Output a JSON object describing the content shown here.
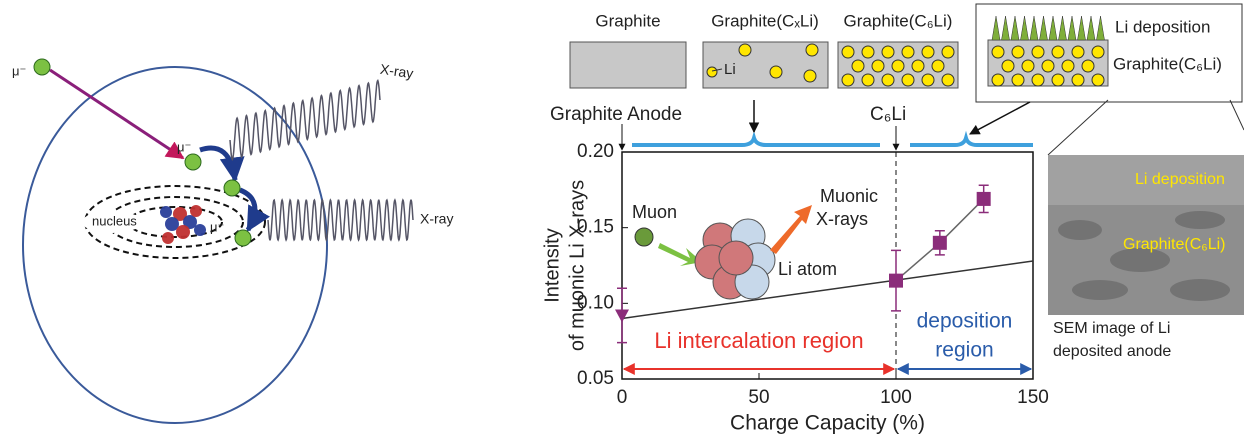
{
  "diagram": {
    "muon_labels": [
      "μ⁻",
      "μ⁻",
      "μ⁻"
    ],
    "xray_labels": [
      "X-ray",
      "X-ray"
    ],
    "nucleus": "nucleus"
  },
  "schematic": {
    "panels": [
      "Graphite",
      "Graphite(CₓLi)",
      "Graphite(C₆Li)"
    ],
    "li_label": "Li",
    "deposit_panel": [
      "Li deposition",
      "Graphite(C₆Li)"
    ]
  },
  "sem": {
    "overlay": [
      "Li deposition",
      "Graphite(C₆Li)"
    ],
    "caption": [
      "SEM image of Li",
      "deposited anode"
    ]
  },
  "chart_data": {
    "type": "scatter",
    "xlabel": "Charge Capacity (%)",
    "ylabel": [
      "Intensity",
      "of muonic Li X-rays"
    ],
    "xlim": [
      0,
      150
    ],
    "ylim": [
      0.05,
      0.2
    ],
    "xticks": [
      0,
      50,
      100,
      150
    ],
    "yticks": [
      0.05,
      {
        "value": 0.1,
        "label": "0.10"
      },
      0.15,
      {
        "value": 0.2,
        "label": "0.20"
      }
    ],
    "series": [
      {
        "color": "#8b2d7a",
        "markers": [
          "triangle",
          "square",
          "square",
          "square"
        ],
        "x": [
          0,
          100,
          116,
          132
        ],
        "values": [
          0.092,
          0.115,
          0.14,
          0.169
        ],
        "errors": [
          0.018,
          0.02,
          0.008,
          0.009
        ]
      }
    ],
    "fit": {
      "x": [
        0,
        150
      ],
      "values": [
        0.09,
        0.128
      ],
      "color": "#333333"
    },
    "vline": 100,
    "annotations": {
      "anode": "Graphite Anode",
      "c6li": "C₆Li",
      "intercalation": "Li intercalation region",
      "deposition": [
        "deposition",
        "region"
      ],
      "muon": "Muon",
      "muonic": [
        "Muonic",
        "X-rays"
      ],
      "atom": "Li atom"
    }
  }
}
